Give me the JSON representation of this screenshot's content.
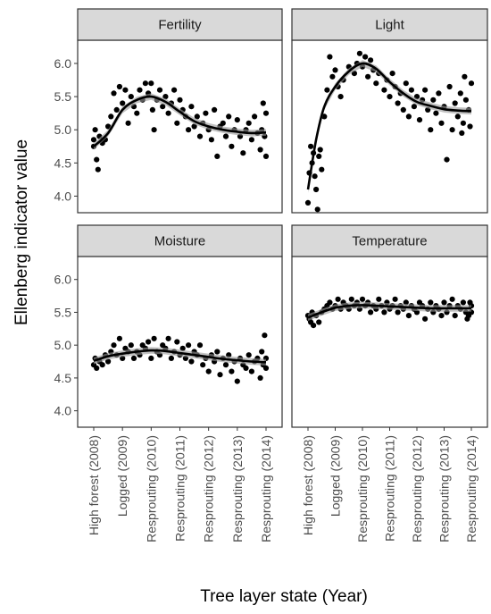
{
  "chart_data": {
    "type": "scatter",
    "facet_layout": "2x2",
    "ylabel": "Ellenberg indicator value",
    "xlabel": "Tree layer state (Year)",
    "categories": [
      "High forest (2008)",
      "Logged (2009)",
      "Resprouting (2010)",
      "Resprouting (2011)",
      "Resprouting (2012)",
      "Resprouting (2013)",
      "Resprouting (2014)"
    ],
    "y_ticks": [
      "4.0",
      "4.5",
      "5.0",
      "5.5",
      "6.0"
    ],
    "ylim": [
      3.75,
      6.35
    ],
    "grid": false,
    "smoothing": "loess with confidence band",
    "point_color": "#000000",
    "ribbon_color": "#999999",
    "strip_color": "#d9d9d9",
    "panels": [
      {
        "name": "Fertility",
        "smooth": [
          [
            0,
            4.75
          ],
          [
            0.5,
            4.95
          ],
          [
            1,
            5.3
          ],
          [
            1.5,
            5.45
          ],
          [
            2,
            5.5
          ],
          [
            2.5,
            5.42
          ],
          [
            3,
            5.27
          ],
          [
            3.5,
            5.13
          ],
          [
            4,
            5.05
          ],
          [
            4.5,
            5.0
          ],
          [
            5,
            4.97
          ],
          [
            5.5,
            4.95
          ],
          [
            6,
            4.96
          ]
        ],
        "points": [
          [
            0,
            4.85
          ],
          [
            0,
            4.75
          ],
          [
            0.05,
            5.0
          ],
          [
            0.1,
            4.55
          ],
          [
            0.15,
            4.4
          ],
          [
            0.2,
            4.9
          ],
          [
            0.3,
            4.8
          ],
          [
            0.4,
            4.85
          ],
          [
            0.5,
            5.05
          ],
          [
            0.6,
            5.2
          ],
          [
            0.7,
            5.55
          ],
          [
            0.8,
            5.3
          ],
          [
            0.9,
            5.65
          ],
          [
            1.0,
            5.4
          ],
          [
            1.1,
            5.6
          ],
          [
            1.2,
            5.1
          ],
          [
            1.3,
            5.5
          ],
          [
            1.4,
            5.35
          ],
          [
            1.5,
            5.25
          ],
          [
            1.6,
            5.6
          ],
          [
            1.7,
            5.45
          ],
          [
            1.8,
            5.7
          ],
          [
            1.9,
            5.55
          ],
          [
            2.0,
            5.7
          ],
          [
            2.05,
            5.3
          ],
          [
            2.1,
            5.0
          ],
          [
            2.2,
            5.45
          ],
          [
            2.3,
            5.6
          ],
          [
            2.4,
            5.35
          ],
          [
            2.5,
            5.5
          ],
          [
            2.6,
            5.25
          ],
          [
            2.7,
            5.4
          ],
          [
            2.8,
            5.6
          ],
          [
            2.9,
            5.1
          ],
          [
            3.0,
            5.45
          ],
          [
            3.1,
            5.3
          ],
          [
            3.2,
            5.2
          ],
          [
            3.3,
            5.0
          ],
          [
            3.4,
            5.35
          ],
          [
            3.5,
            5.05
          ],
          [
            3.6,
            5.2
          ],
          [
            3.7,
            4.9
          ],
          [
            3.8,
            5.1
          ],
          [
            3.9,
            5.25
          ],
          [
            4.0,
            5.0
          ],
          [
            4.1,
            4.85
          ],
          [
            4.2,
            5.3
          ],
          [
            4.3,
            4.6
          ],
          [
            4.4,
            5.05
          ],
          [
            4.5,
            5.1
          ],
          [
            4.6,
            4.9
          ],
          [
            4.7,
            5.2
          ],
          [
            4.8,
            4.75
          ],
          [
            4.9,
            5.0
          ],
          [
            5.0,
            5.15
          ],
          [
            5.1,
            4.9
          ],
          [
            5.2,
            4.65
          ],
          [
            5.3,
            5.0
          ],
          [
            5.4,
            5.1
          ],
          [
            5.5,
            4.85
          ],
          [
            5.6,
            5.2
          ],
          [
            5.7,
            4.95
          ],
          [
            5.8,
            4.7
          ],
          [
            5.9,
            5.4
          ],
          [
            6.0,
            5.25
          ],
          [
            6.0,
            4.6
          ],
          [
            5.95,
            4.9
          ],
          [
            5.85,
            5.0
          ]
        ]
      },
      {
        "name": "Light",
        "smooth": [
          [
            0,
            4.1
          ],
          [
            0.3,
            4.85
          ],
          [
            0.6,
            5.35
          ],
          [
            1,
            5.65
          ],
          [
            1.5,
            5.88
          ],
          [
            2,
            6.0
          ],
          [
            2.5,
            5.92
          ],
          [
            3,
            5.72
          ],
          [
            3.5,
            5.55
          ],
          [
            4,
            5.42
          ],
          [
            4.5,
            5.36
          ],
          [
            5,
            5.31
          ],
          [
            5.5,
            5.29
          ],
          [
            6,
            5.28
          ]
        ],
        "points": [
          [
            0,
            3.9
          ],
          [
            0.05,
            4.35
          ],
          [
            0.1,
            4.75
          ],
          [
            0.15,
            4.5
          ],
          [
            0.2,
            4.65
          ],
          [
            0.25,
            4.3
          ],
          [
            0.3,
            4.1
          ],
          [
            0.35,
            3.8
          ],
          [
            0.4,
            4.6
          ],
          [
            0.45,
            4.7
          ],
          [
            0.5,
            4.4
          ],
          [
            0.6,
            5.2
          ],
          [
            0.7,
            5.6
          ],
          [
            0.8,
            6.1
          ],
          [
            0.9,
            5.8
          ],
          [
            1.0,
            5.9
          ],
          [
            1.1,
            5.65
          ],
          [
            1.2,
            5.5
          ],
          [
            1.3,
            5.75
          ],
          [
            1.5,
            5.95
          ],
          [
            1.7,
            5.85
          ],
          [
            1.8,
            6.0
          ],
          [
            1.9,
            6.15
          ],
          [
            2.0,
            5.95
          ],
          [
            2.1,
            6.1
          ],
          [
            2.2,
            5.8
          ],
          [
            2.3,
            6.05
          ],
          [
            2.4,
            5.9
          ],
          [
            2.5,
            5.7
          ],
          [
            2.6,
            5.85
          ],
          [
            2.8,
            5.6
          ],
          [
            2.9,
            5.75
          ],
          [
            3.0,
            5.5
          ],
          [
            3.1,
            5.85
          ],
          [
            3.2,
            5.65
          ],
          [
            3.3,
            5.4
          ],
          [
            3.4,
            5.55
          ],
          [
            3.5,
            5.3
          ],
          [
            3.6,
            5.7
          ],
          [
            3.7,
            5.2
          ],
          [
            3.8,
            5.6
          ],
          [
            3.9,
            5.35
          ],
          [
            4.0,
            5.5
          ],
          [
            4.1,
            5.15
          ],
          [
            4.2,
            5.45
          ],
          [
            4.3,
            5.6
          ],
          [
            4.4,
            5.3
          ],
          [
            4.5,
            5.0
          ],
          [
            4.6,
            5.45
          ],
          [
            4.7,
            5.25
          ],
          [
            4.8,
            5.55
          ],
          [
            4.9,
            5.1
          ],
          [
            5.0,
            5.35
          ],
          [
            5.1,
            4.55
          ],
          [
            5.2,
            5.65
          ],
          [
            5.3,
            5.0
          ],
          [
            5.4,
            5.4
          ],
          [
            5.5,
            5.2
          ],
          [
            5.6,
            5.55
          ],
          [
            5.7,
            5.1
          ],
          [
            5.8,
            5.45
          ],
          [
            5.9,
            5.3
          ],
          [
            6.0,
            5.7
          ],
          [
            5.95,
            5.05
          ],
          [
            5.75,
            5.8
          ],
          [
            5.65,
            4.95
          ]
        ]
      },
      {
        "name": "Moisture",
        "smooth": [
          [
            0,
            4.76
          ],
          [
            0.5,
            4.83
          ],
          [
            1,
            4.87
          ],
          [
            1.5,
            4.9
          ],
          [
            2,
            4.92
          ],
          [
            2.5,
            4.91
          ],
          [
            3,
            4.88
          ],
          [
            3.5,
            4.85
          ],
          [
            4,
            4.82
          ],
          [
            4.5,
            4.79
          ],
          [
            5,
            4.77
          ],
          [
            5.5,
            4.75
          ],
          [
            6,
            4.74
          ]
        ],
        "points": [
          [
            0,
            4.7
          ],
          [
            0.05,
            4.8
          ],
          [
            0.1,
            4.65
          ],
          [
            0.2,
            4.75
          ],
          [
            0.3,
            4.7
          ],
          [
            0.4,
            4.85
          ],
          [
            0.5,
            4.75
          ],
          [
            0.6,
            4.9
          ],
          [
            0.7,
            5.0
          ],
          [
            0.8,
            4.85
          ],
          [
            0.9,
            5.1
          ],
          [
            1.0,
            4.8
          ],
          [
            1.1,
            4.95
          ],
          [
            1.2,
            4.9
          ],
          [
            1.3,
            5.0
          ],
          [
            1.4,
            4.8
          ],
          [
            1.5,
            4.9
          ],
          [
            1.6,
            4.85
          ],
          [
            1.7,
            5.0
          ],
          [
            1.8,
            4.95
          ],
          [
            1.9,
            5.05
          ],
          [
            2.0,
            4.8
          ],
          [
            2.1,
            5.1
          ],
          [
            2.2,
            4.9
          ],
          [
            2.3,
            4.85
          ],
          [
            2.4,
            5.0
          ],
          [
            2.5,
            4.95
          ],
          [
            2.6,
            5.1
          ],
          [
            2.7,
            4.8
          ],
          [
            2.8,
            4.9
          ],
          [
            2.9,
            5.05
          ],
          [
            3.0,
            4.85
          ],
          [
            3.1,
            4.95
          ],
          [
            3.2,
            4.8
          ],
          [
            3.3,
            5.0
          ],
          [
            3.4,
            4.75
          ],
          [
            3.5,
            4.9
          ],
          [
            3.6,
            4.85
          ],
          [
            3.7,
            5.0
          ],
          [
            3.8,
            4.7
          ],
          [
            3.9,
            4.8
          ],
          [
            4.0,
            4.6
          ],
          [
            4.1,
            4.85
          ],
          [
            4.2,
            4.75
          ],
          [
            4.3,
            4.9
          ],
          [
            4.4,
            4.55
          ],
          [
            4.5,
            4.8
          ],
          [
            4.6,
            4.7
          ],
          [
            4.7,
            4.85
          ],
          [
            4.8,
            4.6
          ],
          [
            4.9,
            4.75
          ],
          [
            5.0,
            4.45
          ],
          [
            5.1,
            4.8
          ],
          [
            5.2,
            4.7
          ],
          [
            5.3,
            4.65
          ],
          [
            5.4,
            4.85
          ],
          [
            5.5,
            4.6
          ],
          [
            5.6,
            4.75
          ],
          [
            5.7,
            4.8
          ],
          [
            5.8,
            4.5
          ],
          [
            5.9,
            4.7
          ],
          [
            6.0,
            4.8
          ],
          [
            6.0,
            4.65
          ],
          [
            5.95,
            5.15
          ],
          [
            5.85,
            4.9
          ]
        ]
      },
      {
        "name": "Temperature",
        "smooth": [
          [
            0,
            5.42
          ],
          [
            0.5,
            5.5
          ],
          [
            1,
            5.57
          ],
          [
            1.5,
            5.6
          ],
          [
            2,
            5.61
          ],
          [
            2.5,
            5.6
          ],
          [
            3,
            5.59
          ],
          [
            3.5,
            5.58
          ],
          [
            4,
            5.57
          ],
          [
            4.5,
            5.56
          ],
          [
            5,
            5.56
          ],
          [
            5.5,
            5.56
          ],
          [
            6,
            5.56
          ]
        ],
        "points": [
          [
            0,
            5.45
          ],
          [
            0.05,
            5.4
          ],
          [
            0.1,
            5.35
          ],
          [
            0.15,
            5.5
          ],
          [
            0.2,
            5.3
          ],
          [
            0.3,
            5.45
          ],
          [
            0.4,
            5.35
          ],
          [
            0.5,
            5.5
          ],
          [
            0.6,
            5.55
          ],
          [
            0.7,
            5.6
          ],
          [
            0.8,
            5.65
          ],
          [
            0.9,
            5.55
          ],
          [
            1.0,
            5.6
          ],
          [
            1.1,
            5.7
          ],
          [
            1.2,
            5.55
          ],
          [
            1.3,
            5.65
          ],
          [
            1.4,
            5.6
          ],
          [
            1.5,
            5.55
          ],
          [
            1.6,
            5.7
          ],
          [
            1.7,
            5.6
          ],
          [
            1.8,
            5.65
          ],
          [
            1.9,
            5.55
          ],
          [
            2.0,
            5.7
          ],
          [
            2.1,
            5.6
          ],
          [
            2.2,
            5.65
          ],
          [
            2.3,
            5.5
          ],
          [
            2.4,
            5.6
          ],
          [
            2.5,
            5.55
          ],
          [
            2.6,
            5.7
          ],
          [
            2.7,
            5.6
          ],
          [
            2.8,
            5.5
          ],
          [
            2.9,
            5.65
          ],
          [
            3.0,
            5.55
          ],
          [
            3.1,
            5.6
          ],
          [
            3.2,
            5.7
          ],
          [
            3.3,
            5.5
          ],
          [
            3.4,
            5.6
          ],
          [
            3.5,
            5.55
          ],
          [
            3.6,
            5.65
          ],
          [
            3.7,
            5.45
          ],
          [
            3.8,
            5.6
          ],
          [
            3.9,
            5.55
          ],
          [
            4.0,
            5.5
          ],
          [
            4.1,
            5.65
          ],
          [
            4.2,
            5.6
          ],
          [
            4.3,
            5.4
          ],
          [
            4.4,
            5.55
          ],
          [
            4.5,
            5.65
          ],
          [
            4.6,
            5.5
          ],
          [
            4.7,
            5.6
          ],
          [
            4.8,
            5.55
          ],
          [
            4.9,
            5.45
          ],
          [
            5.0,
            5.65
          ],
          [
            5.1,
            5.5
          ],
          [
            5.2,
            5.6
          ],
          [
            5.3,
            5.7
          ],
          [
            5.4,
            5.45
          ],
          [
            5.5,
            5.6
          ],
          [
            5.6,
            5.55
          ],
          [
            5.7,
            5.65
          ],
          [
            5.8,
            5.5
          ],
          [
            5.9,
            5.45
          ],
          [
            6.0,
            5.6
          ],
          [
            6.0,
            5.5
          ],
          [
            5.95,
            5.65
          ],
          [
            5.85,
            5.4
          ]
        ]
      }
    ]
  }
}
